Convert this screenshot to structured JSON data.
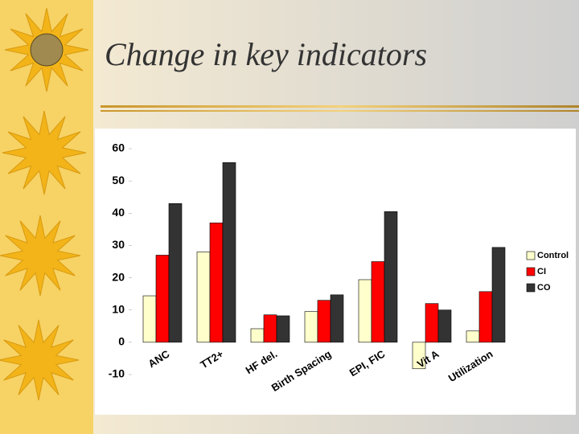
{
  "title": "Change in key indicators",
  "chart_data": {
    "type": "bar",
    "categories": [
      "ANC",
      "TT2+",
      "HF del.",
      "Birth Spacing",
      "EPI, FIC",
      "Vit A",
      "Utilization"
    ],
    "series": [
      {
        "name": "Control",
        "color": "#ffffcc",
        "values": [
          14.4,
          28,
          4.2,
          9.5,
          19.4,
          -8.2,
          3.5
        ]
      },
      {
        "name": "CI",
        "color": "#ff0000",
        "values": [
          27,
          37,
          8.5,
          13,
          25,
          12,
          15.7
        ]
      },
      {
        "name": "CO",
        "color": "#333333",
        "values": [
          43,
          55.7,
          8.2,
          14.7,
          40.5,
          10,
          29.4
        ]
      }
    ],
    "ylim": [
      -10,
      60
    ],
    "yticks": [
      -10,
      0,
      10,
      20,
      30,
      40,
      50,
      60
    ],
    "legend": "right"
  }
}
